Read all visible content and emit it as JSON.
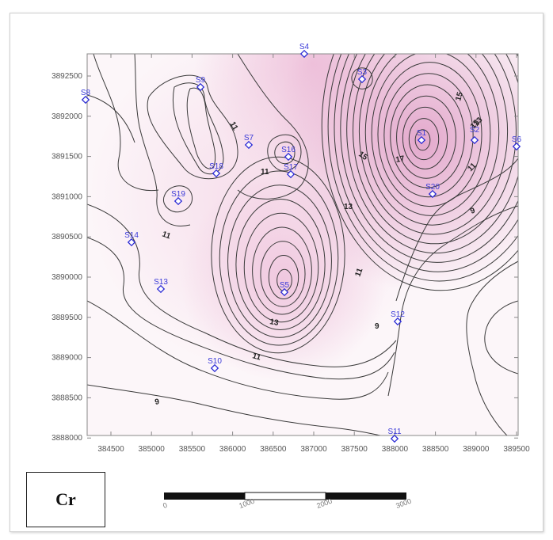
{
  "map": {
    "element_label": "Cr",
    "x_ticks": [
      "384500",
      "385000",
      "385500",
      "386000",
      "386500",
      "387000",
      "387500",
      "388000",
      "388500",
      "389000",
      "389500"
    ],
    "y_ticks": [
      "3892500",
      "3892000",
      "3891500",
      "3891000",
      "3890500",
      "3890000",
      "3889500",
      "3889000",
      "3888500",
      "3888000"
    ],
    "scale_bar_labels": [
      "0",
      "1000",
      "2000",
      "3000"
    ],
    "contour_labels": [
      "9",
      "9",
      "9",
      "11",
      "11",
      "11",
      "11",
      "11",
      "11",
      "13",
      "13",
      "13",
      "15",
      "15",
      "17",
      "13"
    ],
    "stations": [
      {
        "name": "S4"
      },
      {
        "name": "S3"
      },
      {
        "name": "S8"
      },
      {
        "name": "S9"
      },
      {
        "name": "S1"
      },
      {
        "name": "S2"
      },
      {
        "name": "S6"
      },
      {
        "name": "S7"
      },
      {
        "name": "S16"
      },
      {
        "name": "S17"
      },
      {
        "name": "S18"
      },
      {
        "name": "S19"
      },
      {
        "name": "S20"
      },
      {
        "name": "S14"
      },
      {
        "name": "S13"
      },
      {
        "name": "S5"
      },
      {
        "name": "S12"
      },
      {
        "name": "S10"
      },
      {
        "name": "S11"
      }
    ],
    "colors": {
      "high": "#e3a8cc",
      "low": "#fdf9fb",
      "contour": "#3a3a3a",
      "station": "#2b2bd6"
    }
  }
}
